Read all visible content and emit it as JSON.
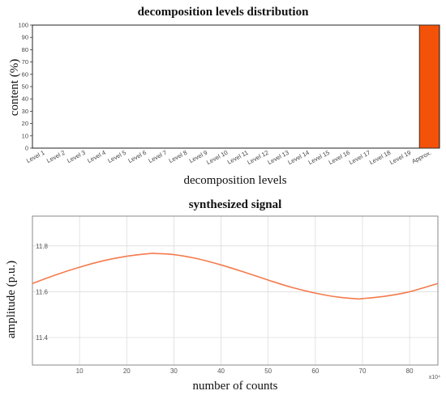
{
  "chart_data": [
    {
      "type": "bar",
      "title": "decomposition levels distribution",
      "xlabel": "decomposition levels",
      "ylabel": "content (%)",
      "ylim": [
        0,
        100
      ],
      "yticks": [
        "0",
        "10",
        "20",
        "30",
        "40",
        "50",
        "60",
        "70",
        "80",
        "90",
        "100"
      ],
      "categories": [
        "Level 1",
        "Level 2",
        "Level 3",
        "Level 4",
        "Level 5",
        "Level 6",
        "Level 7",
        "Level 8",
        "Level 9",
        "Level 10",
        "Level 11",
        "Level 12",
        "Level 13",
        "Level 14",
        "Level 15",
        "Level 16",
        "Level 17",
        "Level 18",
        "Level 19",
        "Approx."
      ],
      "values": [
        0,
        0,
        0,
        0,
        0,
        0,
        0,
        0,
        0,
        0,
        0,
        0,
        0,
        0,
        0,
        0,
        0,
        0,
        0,
        100
      ],
      "bar_color": "#f45209",
      "grid": false
    },
    {
      "type": "line",
      "title": "synthesized signal",
      "xlabel": "number of counts",
      "ylabel": "amplitude (p.u.)",
      "x_exponent_label": "x10⁴",
      "xlim": [
        0,
        86
      ],
      "ylim": [
        11.28,
        11.93
      ],
      "xticks": [
        "10",
        "20",
        "30",
        "40",
        "50",
        "60",
        "70",
        "80"
      ],
      "yticks": [
        "11.4",
        "11.6",
        "11.8"
      ],
      "line_color": "#f47b4c",
      "grid": true,
      "x": [
        0,
        5,
        10,
        15,
        20,
        25,
        26,
        30,
        35,
        40,
        45,
        50,
        55,
        60,
        65,
        69,
        70,
        75,
        80,
        86
      ],
      "y": [
        11.636,
        11.674,
        11.707,
        11.735,
        11.755,
        11.767,
        11.767,
        11.762,
        11.744,
        11.717,
        11.685,
        11.651,
        11.619,
        11.594,
        11.576,
        11.569,
        11.57,
        11.581,
        11.6,
        11.636
      ]
    }
  ]
}
